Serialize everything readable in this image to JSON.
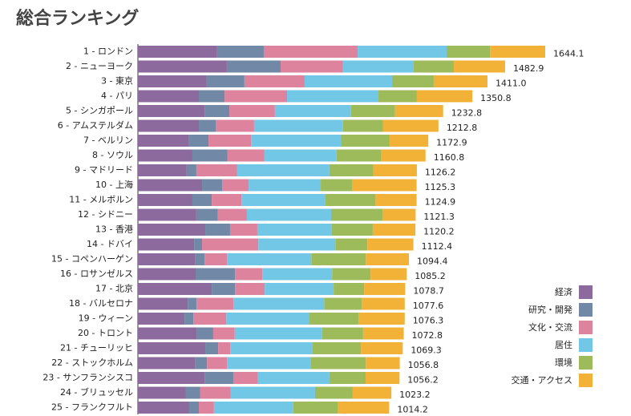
{
  "chart_data": {
    "type": "stacked-bar-horizontal",
    "title": "総合ランキング",
    "categories": [
      "1 - ロンドン",
      "2 - ニューヨーク",
      "3 - 東京",
      "4 - パリ",
      "5 - シンガポール",
      "6 - アムステルダム",
      "7 - ベルリン",
      "8 - ソウル",
      "9 - マドリード",
      "10 - 上海",
      "11 - メルボルン",
      "12 - シドニー",
      "13 - 香港",
      "14 - ドバイ",
      "15 - コペンハーゲン",
      "16 - ロサンゼルス",
      "17 - 北京",
      "18 - バルセロナ",
      "19 - ウィーン",
      "20 - トロント",
      "21 - チューリッヒ",
      "22 - ストックホルム",
      "23 - サンフランシスコ",
      "24 - ブリュッセル",
      "25 - フランクフルト"
    ],
    "series": [
      {
        "name": "経済",
        "color": "#8c6a9e",
        "values": [
          320,
          359,
          278,
          246,
          269,
          246,
          204,
          220,
          197,
          259,
          220,
          236,
          272,
          227,
          230,
          233,
          298,
          201,
          188,
          239,
          272,
          230,
          269,
          194,
          207
        ]
      },
      {
        "name": "研究・開発",
        "color": "#7189a6",
        "values": [
          188,
          217,
          152,
          104,
          100,
          68,
          81,
          142,
          39,
          81,
          78,
          87,
          100,
          32,
          39,
          159,
          94,
          36,
          36,
          65,
          52,
          49,
          116,
          58,
          39
        ]
      },
      {
        "name": "文化・交流",
        "color": "#de839e",
        "values": [
          379,
          252,
          243,
          252,
          184,
          155,
          172,
          149,
          165,
          107,
          120,
          117,
          110,
          227,
          91,
          110,
          120,
          149,
          133,
          87,
          49,
          81,
          100,
          123,
          61
        ]
      },
      {
        "name": "居住",
        "color": "#72c7e7",
        "values": [
          359,
          285,
          353,
          369,
          307,
          359,
          362,
          291,
          372,
          291,
          337,
          340,
          301,
          311,
          340,
          282,
          278,
          366,
          333,
          353,
          330,
          337,
          288,
          340,
          320
        ]
      },
      {
        "name": "環境",
        "color": "#9dbb5b",
        "values": [
          175,
          162,
          168,
          155,
          178,
          162,
          197,
          181,
          178,
          126,
          204,
          207,
          165,
          129,
          220,
          155,
          123,
          152,
          201,
          165,
          197,
          223,
          146,
          152,
          181
        ]
      },
      {
        "name": "交通・アクセス",
        "color": "#f2b137",
        "values": [
          223,
          207,
          217,
          224,
          194,
          223,
          156,
          178,
          175,
          261,
          166,
          134,
          172,
          186,
          174,
          146,
          166,
          173,
          186,
          164,
          169,
          137,
          137,
          156,
          206
        ]
      }
    ],
    "totals": [
      1644.1,
      1482.9,
      1411.0,
      1350.8,
      1232.8,
      1212.8,
      1172.9,
      1160.8,
      1126.2,
      1125.3,
      1124.9,
      1121.3,
      1120.2,
      1112.4,
      1094.4,
      1085.2,
      1078.7,
      1077.6,
      1076.3,
      1072.8,
      1069.3,
      1056.8,
      1056.2,
      1023.2,
      1014.2
    ],
    "value_labels": [
      "1644.1",
      "1482.9",
      "1411.0",
      "1350.8",
      "1232.8",
      "1212.8",
      "1172.9",
      "1160.8",
      "1126.2",
      "1125.3",
      "1124.9",
      "1121.3",
      "1120.2",
      "1112.4",
      "1094.4",
      "1085.2",
      "1078.7",
      "1077.6",
      "1076.3",
      "1072.8",
      "1069.3",
      "1056.8",
      "1056.2",
      "1023.2",
      "1014.2"
    ],
    "legend": "right"
  }
}
